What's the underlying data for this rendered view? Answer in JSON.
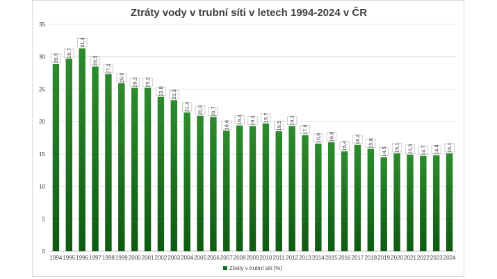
{
  "chart_data": {
    "type": "bar",
    "title": "Ztráty vody v trubní síti v letech 1994-2024 v ČR",
    "categories": [
      "1994",
      "1995",
      "1996",
      "1997",
      "1998",
      "1999",
      "2000",
      "2001",
      "2002",
      "2003",
      "2004",
      "2005",
      "2006",
      "2007",
      "2008",
      "2009",
      "2010",
      "2011",
      "2012",
      "2013",
      "2014",
      "2015",
      "2016",
      "2017",
      "2018",
      "2019",
      "2020",
      "2021",
      "2022",
      "2023",
      "2024"
    ],
    "series": [
      {
        "name": "Ztráty v trubní síti [%]",
        "values": [
          28.9,
          29.7,
          31.3,
          28.5,
          27.3,
          25.9,
          25.2,
          25.2,
          23.8,
          23.3,
          21.4,
          20.9,
          20.7,
          18.6,
          19.4,
          19.3,
          19.7,
          18.5,
          19.3,
          17.9,
          16.6,
          16.8,
          15.4,
          16.4,
          15.8,
          14.5,
          15.1,
          14.9,
          14.7,
          14.8,
          15.1
        ],
        "data_labels": [
          "28,9",
          "29,7",
          "31,3",
          "28,5",
          "27,3",
          "25,9",
          "25,2",
          "25,2",
          "23,8",
          "23,3",
          "21,4",
          "20,9",
          "20,7",
          "18,6",
          "19,4",
          "19,3",
          "19,7",
          "18,5",
          "19,3",
          "17,9",
          "16,6",
          "16,8",
          "15,4",
          "16,4",
          "15,8",
          "14,5",
          "15,1",
          "14,9",
          "14,7",
          "14,8",
          "15,1"
        ],
        "color": "#1e7d1e"
      }
    ],
    "y_ticks": [
      "0",
      "5",
      "10",
      "15",
      "20",
      "25",
      "30",
      "35"
    ],
    "ylim": [
      0,
      35
    ],
    "grid": true,
    "legend_position": "bottom"
  }
}
